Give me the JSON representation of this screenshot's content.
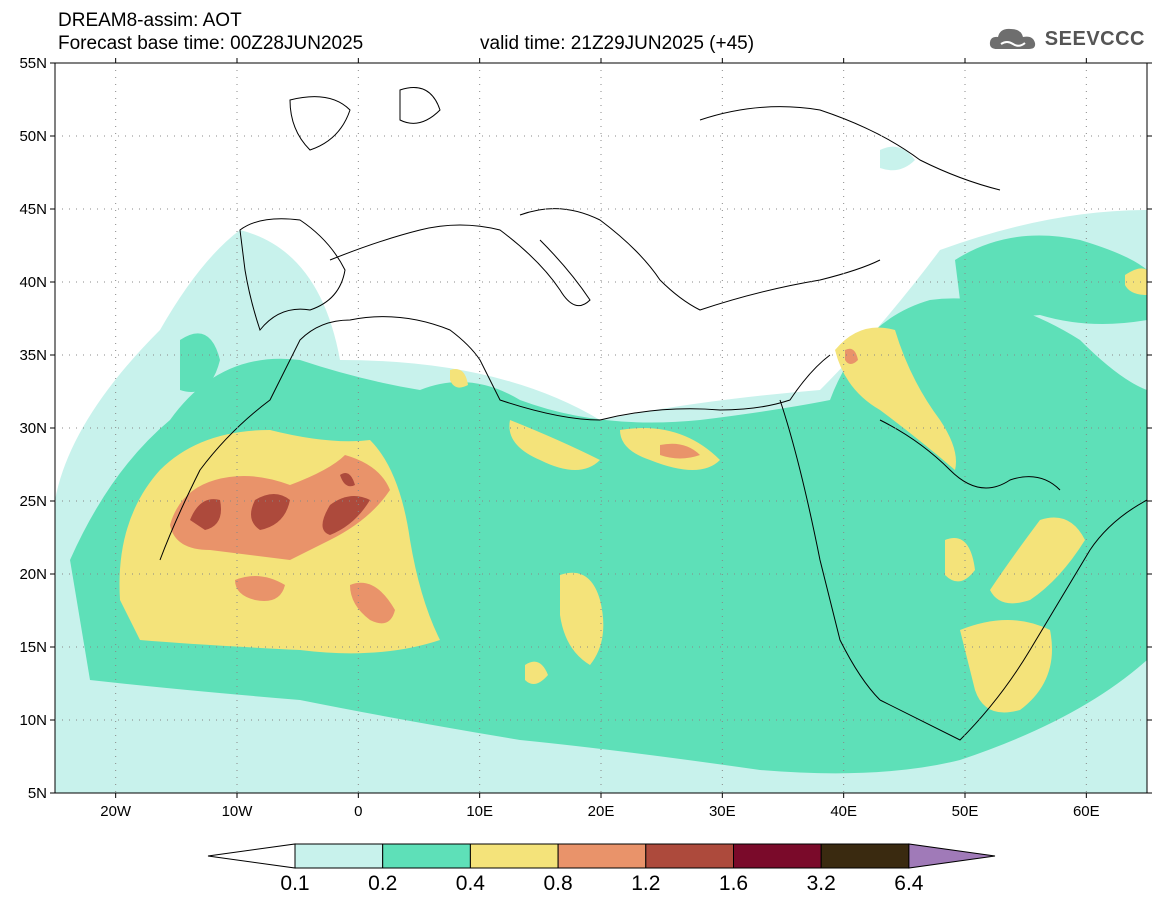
{
  "header": {
    "title_line1": "DREAM8-assim: AOT",
    "title_line2": "Forecast base time: 00Z28JUN2025",
    "valid_time": "valid time: 21Z29JUN2025 (+45)",
    "logo_text": "SEEVCCC"
  },
  "map": {
    "lat_labels": [
      "55N",
      "50N",
      "45N",
      "40N",
      "35N",
      "30N",
      "25N",
      "20N",
      "15N",
      "10N",
      "5N"
    ],
    "lon_labels": [
      "20W",
      "10W",
      "0",
      "10E",
      "20E",
      "30E",
      "40E",
      "50E",
      "60E"
    ],
    "gridlines": true,
    "extent": {
      "lon": [
        -25,
        65
      ],
      "lat": [
        5,
        55
      ]
    }
  },
  "colorbar": {
    "bins": [
      {
        "color": "#c8f2ec"
      },
      {
        "color": "#5ee0b8"
      },
      {
        "color": "#f4e37a"
      },
      {
        "color": "#e9936a"
      },
      {
        "color": "#ad4a3c"
      },
      {
        "color": "#7a0a2a"
      },
      {
        "color": "#3a2a10"
      }
    ],
    "upper_color": "#a07ab8",
    "tick_labels": [
      "0.1",
      "0.2",
      "0.4",
      "0.8",
      "1.2",
      "1.6",
      "3.2",
      "6.4"
    ]
  }
}
